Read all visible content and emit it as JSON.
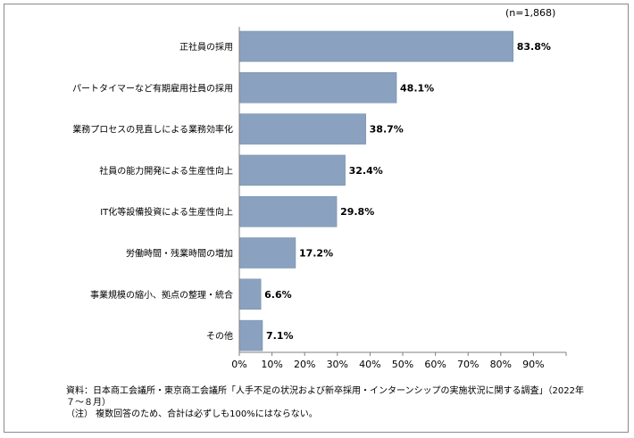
{
  "sample_size": "(n=1,868)",
  "chart_data": {
    "type": "bar",
    "orientation": "horizontal",
    "categories": [
      "正社員の採用",
      "パートタイマーなど有期雇用社員の採用",
      "業務プロセスの見直しによる業務効率化",
      "社員の能力開発による生産性向上",
      "IT化等設備投資による生産性向上",
      "労働時間・残業時間の増加",
      "事業規模の縮小、拠点の整理・統合",
      "その他"
    ],
    "values": [
      83.8,
      48.1,
      38.7,
      32.4,
      29.8,
      17.2,
      6.6,
      7.1
    ],
    "value_labels": [
      "83.8%",
      "48.1%",
      "38.7%",
      "32.4%",
      "29.8%",
      "17.2%",
      "6.6%",
      "7.1%"
    ],
    "xticks": [
      0,
      10,
      20,
      30,
      40,
      50,
      60,
      70,
      80,
      90
    ],
    "xtick_labels": [
      "0%",
      "10%",
      "20%",
      "30%",
      "40%",
      "50%",
      "60%",
      "70%",
      "80%",
      "90%"
    ],
    "xlim": [
      0,
      100
    ],
    "grid": false,
    "bar_color": "#8aa2bf"
  },
  "notes": {
    "source": "資料：日本商工会議所・東京商工会議所「人手不足の状況および新卒採用・インターンシップの実施状況に関する調査」（2022年７～８月）",
    "note": "（注） 複数回答のため、合計は必ずしも100%にはならない。"
  }
}
